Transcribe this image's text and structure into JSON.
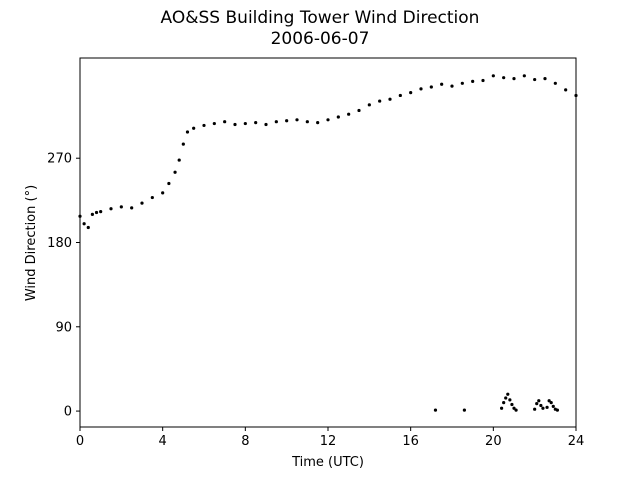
{
  "chart_data": {
    "type": "scatter",
    "title": "AO&SS Building Tower Wind Direction",
    "subtitle": "2006-06-07",
    "xlabel": "Time (UTC)",
    "ylabel": "Wind Direction (°)",
    "xlim": [
      0,
      24
    ],
    "ylim": [
      -17,
      377
    ],
    "xticks": [
      "0",
      "4",
      "8",
      "12",
      "16",
      "20",
      "24"
    ],
    "yticks": [
      "0",
      "90",
      "180",
      "270"
    ],
    "grid": false,
    "marker_color": "#000000",
    "series": [
      {
        "x": [
          0.0,
          0.2,
          0.4,
          0.6,
          0.8,
          1.0,
          1.5,
          2.0,
          2.5,
          3.0,
          3.5,
          4.0,
          4.3,
          4.6,
          4.8,
          5.0,
          5.2,
          5.5,
          6.0,
          6.5,
          7.0,
          7.5,
          8.0,
          8.5,
          9.0,
          9.5,
          10.0,
          10.5,
          11.0,
          11.5,
          12.0,
          12.5,
          13.0,
          13.5,
          14.0,
          14.5,
          15.0,
          15.5,
          16.0,
          16.5,
          17.0,
          17.5,
          18.0,
          18.5,
          19.0,
          19.5,
          20.0,
          20.5,
          21.0,
          21.5,
          22.0,
          22.5,
          23.0,
          23.5,
          24.0
        ],
        "y": [
          208,
          200,
          196,
          210,
          212,
          213,
          216,
          218,
          217,
          222,
          228,
          233,
          243,
          255,
          268,
          285,
          298,
          302,
          305,
          307,
          309,
          306,
          307,
          308,
          306,
          309,
          310,
          311,
          309,
          308,
          311,
          314,
          317,
          321,
          327,
          331,
          333,
          337,
          340,
          344,
          346,
          349,
          347,
          350,
          352,
          353,
          358,
          356,
          355,
          358,
          354,
          355,
          350,
          343,
          337
        ]
      },
      {
        "x": [
          17.2,
          18.6,
          20.4,
          20.5,
          20.6,
          20.7,
          20.8,
          20.9,
          21.0,
          21.1,
          22.0,
          22.1,
          22.2,
          22.3,
          22.4,
          22.6,
          22.7,
          22.8,
          22.9,
          23.0,
          23.1
        ],
        "y": [
          1,
          1,
          3,
          9,
          14,
          18,
          12,
          7,
          3,
          1,
          2,
          8,
          11,
          6,
          3,
          4,
          11,
          9,
          5,
          2,
          1
        ]
      }
    ]
  }
}
